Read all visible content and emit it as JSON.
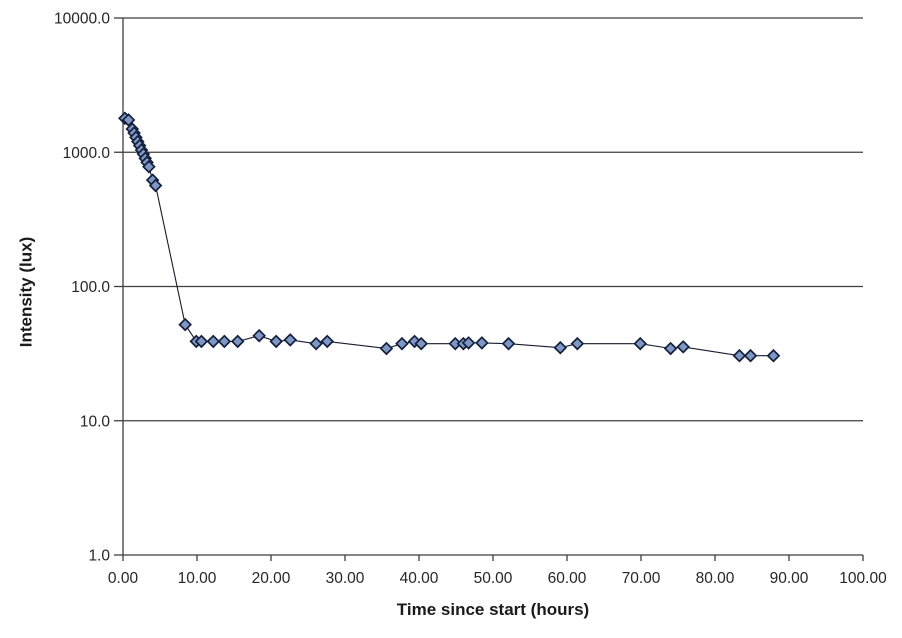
{
  "chart_data": {
    "type": "line",
    "title": "",
    "xlabel": "Time since start (hours)",
    "ylabel": "Intensity (lux)",
    "x": [
      0.25,
      0.75,
      1.25,
      1.5,
      1.75,
      2.0,
      2.25,
      2.5,
      2.75,
      3.0,
      3.25,
      3.5,
      4.0,
      4.4,
      8.4,
      9.9,
      10.6,
      12.2,
      13.7,
      15.5,
      18.4,
      20.7,
      22.6,
      26.1,
      27.6,
      35.6,
      37.7,
      39.4,
      40.3,
      44.9,
      46.0,
      46.7,
      48.5,
      52.1,
      59.1,
      61.4,
      69.9,
      74.0,
      75.7,
      83.3,
      84.8,
      87.9
    ],
    "y": [
      1790,
      1740,
      1490,
      1390,
      1290,
      1200,
      1120,
      1040,
      970,
      900,
      840,
      780,
      620,
      565,
      52,
      39,
      39,
      39,
      39,
      39,
      43,
      39,
      40,
      37.5,
      39,
      34.5,
      37.5,
      39,
      37.5,
      37.5,
      37.5,
      38,
      38,
      37.5,
      35,
      37.5,
      37.5,
      34.5,
      35.5,
      30.5,
      30.5,
      30.5
    ],
    "xlim": [
      0,
      100
    ],
    "ylim": [
      1,
      10000
    ],
    "yscale": "log",
    "grid": "horizontal-only",
    "legend": false,
    "xticks": {
      "values": [
        0,
        10,
        20,
        30,
        40,
        50,
        60,
        70,
        80,
        90,
        100
      ],
      "labels": [
        "0.00",
        "10.00",
        "20.00",
        "30.00",
        "40.00",
        "50.00",
        "60.00",
        "70.00",
        "80.00",
        "90.00",
        "100.00"
      ]
    },
    "yticks": {
      "values": [
        1,
        10,
        100,
        1000,
        10000
      ],
      "labels": [
        "1.0",
        "10.0",
        "100.0",
        "1000.0",
        "10000.0"
      ]
    },
    "colors": {
      "marker_fill": "#7F97C2",
      "marker_stroke": "#121F3D",
      "line": "#1A1A2E",
      "axis": "#3F3F3F",
      "gridline": "#3F3F3F",
      "tick_text": "#262626",
      "title_text": "#1a1a1a",
      "background": "#ffffff"
    }
  }
}
